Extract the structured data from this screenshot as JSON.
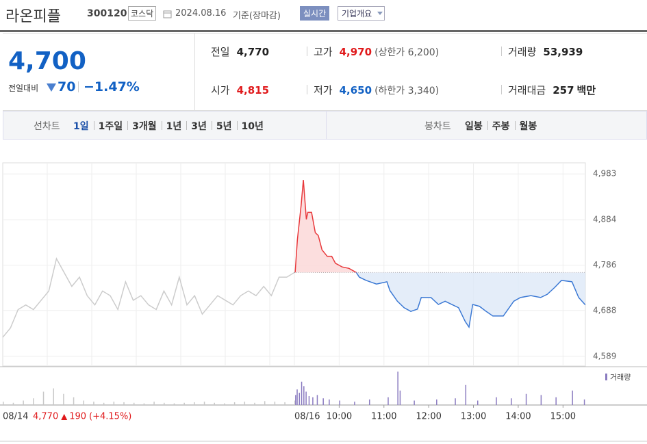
{
  "header": {
    "name": "라온피플",
    "code": "300120",
    "market": "코스닥",
    "date": "2024.08.16",
    "basis": "기준(장마감)",
    "realtime": "실시간",
    "company": "기업개요"
  },
  "quote": {
    "price": "4,700",
    "change_label": "전일대비",
    "change": "70",
    "change_rate": "−1.47%",
    "items": [
      {
        "label": "전일",
        "value": "4,770",
        "color": "#222222"
      },
      {
        "label": "고가",
        "value": "4,970",
        "note": "(상한가 6,200)",
        "color": "#e0191b"
      },
      {
        "label": "거래량",
        "value": "53,939",
        "color": "#222222"
      },
      {
        "label": "시가",
        "value": "4,815",
        "color": "#e0191b"
      },
      {
        "label": "저가",
        "value": "4,650",
        "note": "(하한가 3,340)",
        "color": "#1261c4"
      },
      {
        "label": "거래대금",
        "value": "257",
        "unit": "백만",
        "color": "#222222"
      }
    ]
  },
  "tabs": {
    "line_label": "선차트",
    "line": [
      "1일",
      "1주일",
      "3개월",
      "1년",
      "3년",
      "5년",
      "10년"
    ],
    "candle_label": "봉차트",
    "candle": [
      "일봉",
      "주봉",
      "월봉"
    ]
  },
  "chart_data": {
    "type": "line",
    "ylim": [
      4568,
      5007
    ],
    "yticks": [
      {
        "value": 4983,
        "label": "4,983"
      },
      {
        "value": 4884,
        "label": "4,884"
      },
      {
        "value": 4786,
        "label": "4,786"
      },
      {
        "value": 4688,
        "label": "4,688"
      },
      {
        "value": 4589,
        "label": "4,589"
      }
    ],
    "xlim": [
      0,
      390
    ],
    "xticks": [
      {
        "value": 60,
        "label": "10:00"
      },
      {
        "value": 120,
        "label": "11:00"
      },
      {
        "value": 180,
        "label": "12:00"
      },
      {
        "value": 240,
        "label": "13:00"
      },
      {
        "value": 300,
        "label": "14:00"
      },
      {
        "value": 360,
        "label": "15:00"
      }
    ],
    "grid": true,
    "prev_close": 4770,
    "series": [
      {
        "name": "08/16",
        "up_color": "#e8383b",
        "down_color": "#3a78d4",
        "x": [
          1,
          4,
          9,
          12,
          16,
          18,
          23,
          28,
          32,
          37,
          44,
          50,
          55,
          64,
          73,
          83,
          87,
          96,
          110,
          124,
          128,
          138,
          147,
          156,
          165,
          170,
          183,
          193,
          202,
          211,
          220,
          229,
          234,
          239,
          248,
          257,
          266,
          280,
          294,
          303,
          317,
          330,
          339,
          349,
          358,
          372,
          381,
          390
        ],
        "values": [
          4770,
          4841,
          4915,
          4970,
          4885,
          4900,
          4900,
          4856,
          4850,
          4819,
          4805,
          4805,
          4790,
          4782,
          4779,
          4770,
          4760,
          4753,
          4745,
          4750,
          4731,
          4708,
          4694,
          4686,
          4691,
          4716,
          4716,
          4701,
          4708,
          4701,
          4694,
          4664,
          4652,
          4701,
          4697,
          4686,
          4676,
          4676,
          4708,
          4716,
          4720,
          4716,
          4723,
          4738,
          4753,
          4750,
          4716,
          4700
        ]
      }
    ],
    "prev_day": {
      "label": "08/14",
      "close": "4,770",
      "change": "190",
      "rate": "(+4.15%)",
      "color": "#cccccc",
      "values": [
        4630,
        4650,
        4690,
        4700,
        4690,
        4710,
        4730,
        4800,
        4770,
        4740,
        4760,
        4720,
        4700,
        4730,
        4720,
        4690,
        4750,
        4710,
        4720,
        4700,
        4690,
        4730,
        4700,
        4760,
        4700,
        4720,
        4680,
        4700,
        4720,
        4710,
        4700,
        4720,
        4730,
        4720,
        4740,
        4720,
        4760,
        4760,
        4770
      ]
    },
    "volume": {
      "name": "거래량",
      "color": "#8a7bc0",
      "prev_color": "#c8c8c8",
      "ylim": [
        0,
        3200
      ],
      "x": [
        1,
        3,
        6,
        9,
        12,
        15,
        19,
        24,
        30,
        38,
        46,
        60,
        80,
        100,
        125,
        138,
        141,
        160,
        190,
        215,
        229,
        245,
        270,
        290,
        310,
        330,
        350,
        372,
        388
      ],
      "values": [
        900,
        1400,
        1100,
        2100,
        1700,
        1200,
        800,
        700,
        900,
        600,
        500,
        400,
        300,
        500,
        700,
        3000,
        1300,
        400,
        500,
        600,
        1800,
        400,
        700,
        600,
        1000,
        900,
        700,
        1300,
        500
      ],
      "prev_values": [
        300,
        200,
        400,
        600,
        1200,
        1500,
        1000,
        700,
        400,
        300,
        200,
        300,
        250,
        200,
        150,
        300,
        200,
        150,
        200,
        250,
        300,
        200,
        150,
        250,
        300,
        200,
        350,
        300,
        250,
        400
      ]
    }
  }
}
